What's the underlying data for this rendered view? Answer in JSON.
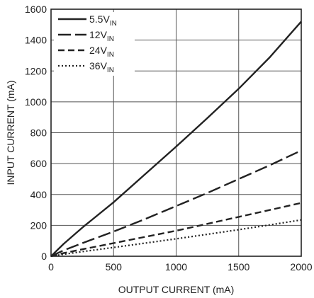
{
  "chart_data": {
    "type": "line",
    "xlabel": "OUTPUT CURRENT (mA)",
    "ylabel": "INPUT CURRENT (mA)",
    "xlim": [
      0,
      2000
    ],
    "ylim": [
      0,
      1600
    ],
    "x_ticks": [
      0,
      500,
      1000,
      1500,
      2000
    ],
    "y_ticks": [
      0,
      200,
      400,
      600,
      800,
      1000,
      1200,
      1400,
      1600
    ],
    "grid": true,
    "legend_position": "top-left",
    "series": [
      {
        "name": "5.5V",
        "name_subscript": "IN",
        "color": "#222222",
        "style": "solid",
        "x": [
          0,
          100,
          250,
          500,
          750,
          1000,
          1250,
          1500,
          1750,
          2000
        ],
        "y": [
          0,
          80,
          185,
          350,
          530,
          710,
          895,
          1085,
          1290,
          1520
        ]
      },
      {
        "name": "12V",
        "name_subscript": "IN",
        "color": "#222222",
        "style": "dash-long",
        "x": [
          0,
          100,
          250,
          500,
          750,
          1000,
          1250,
          1500,
          1750,
          2000
        ],
        "y": [
          0,
          38,
          85,
          160,
          240,
          325,
          410,
          500,
          590,
          685
        ]
      },
      {
        "name": "24V",
        "name_subscript": "IN",
        "color": "#222222",
        "style": "dash",
        "x": [
          0,
          100,
          250,
          500,
          750,
          1000,
          1250,
          1500,
          1750,
          2000
        ],
        "y": [
          0,
          20,
          45,
          85,
          125,
          165,
          210,
          255,
          300,
          345
        ]
      },
      {
        "name": "36V",
        "name_subscript": "IN",
        "color": "#222222",
        "style": "dot",
        "x": [
          0,
          100,
          250,
          500,
          750,
          1000,
          1250,
          1500,
          1750,
          2000
        ],
        "y": [
          0,
          13,
          30,
          57,
          85,
          113,
          142,
          172,
          203,
          235
        ]
      }
    ]
  }
}
